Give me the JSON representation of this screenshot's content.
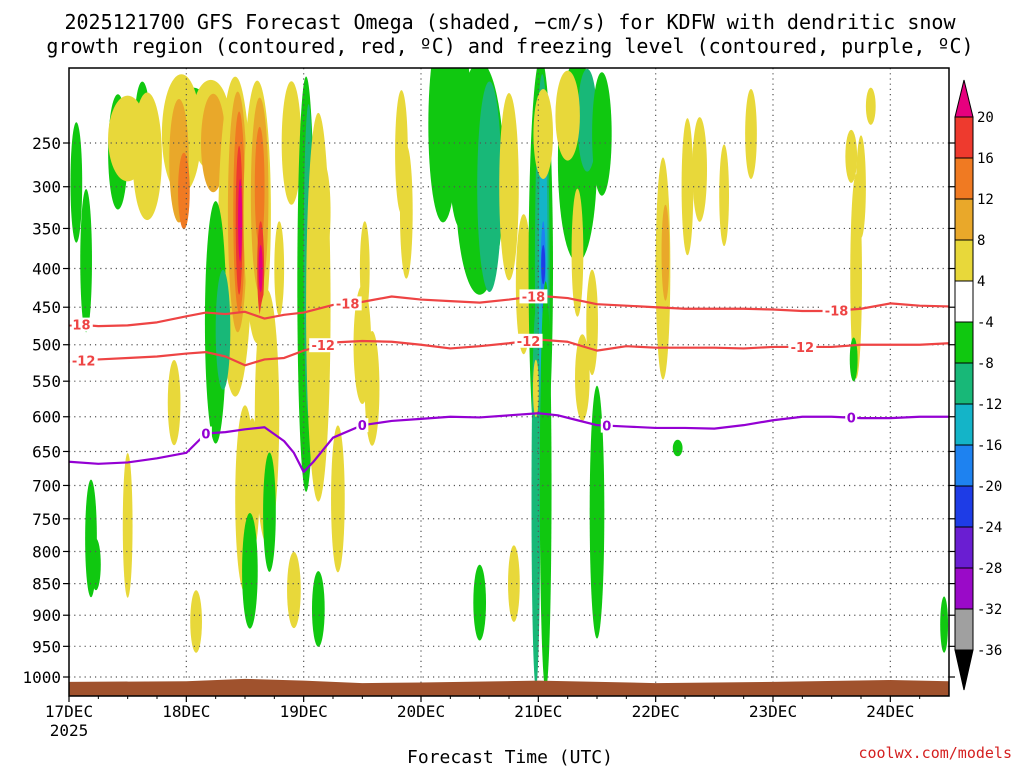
{
  "chart_data": {
    "type": "heatmap",
    "title_lines": [
      "2025121700 GFS Forecast Omega (shaded, −cm/s) for KDFW with dendritic snow",
      "growth region (contoured, red, ºC) and freezing level (contoured, purple, ºC)"
    ],
    "xlabel": "Forecast Time (UTC)",
    "credit": "coolwx.com/models",
    "x_unit": "hours since 2025-12-17 00Z",
    "xlim": [
      0,
      180
    ],
    "x_ticks": [
      {
        "hour": 0,
        "label": "17DEC",
        "sub": "2025"
      },
      {
        "hour": 24,
        "label": "18DEC"
      },
      {
        "hour": 48,
        "label": "19DEC"
      },
      {
        "hour": 72,
        "label": "20DEC"
      },
      {
        "hour": 96,
        "label": "21DEC"
      },
      {
        "hour": 120,
        "label": "22DEC"
      },
      {
        "hour": 144,
        "label": "23DEC"
      },
      {
        "hour": 168,
        "label": "24DEC"
      }
    ],
    "y_unit": "hPa",
    "ylim": [
      200,
      1025
    ],
    "y_ticks": [
      250,
      300,
      350,
      400,
      450,
      500,
      550,
      600,
      650,
      700,
      750,
      800,
      850,
      900,
      950,
      1000
    ],
    "colorbar": {
      "labels": [
        "20",
        "16",
        "12",
        "8",
        "4",
        "-4",
        "-8",
        "-12",
        "-16",
        "-20",
        "-24",
        "-28",
        "-32",
        "-36"
      ],
      "colors": {
        "gt20": "#e6007e",
        "16_20": "#ee3a2e",
        "12_16": "#f07a22",
        "8_12": "#e9a82a",
        "4_8": "#e8d83a",
        "m4_4": "#ffffff",
        "m8_m4": "#10c810",
        "m12_m8": "#18b878",
        "m16_m12": "#14b4c8",
        "m20_m16": "#1e82f0",
        "m24_m20": "#1e3ce6",
        "m28_m24": "#6a1ed2",
        "m32_m28": "#9a0ac8",
        "m36_m32": "#a0a0a0",
        "lt36": "#000000"
      }
    },
    "ground_color": "#a0522d",
    "series": [
      {
        "name": "-18 C isotherm",
        "color": "#ee4444",
        "label": "-18",
        "x": [
          0,
          6,
          12,
          18,
          24,
          28,
          32,
          36,
          40,
          44,
          48,
          54,
          60,
          66,
          72,
          78,
          84,
          90,
          96,
          102,
          108,
          114,
          120,
          126,
          132,
          138,
          144,
          150,
          156,
          162,
          168,
          174,
          180
        ],
        "y": [
          472,
          475,
          474,
          470,
          462,
          457,
          459,
          456,
          465,
          460,
          457,
          447,
          443,
          436,
          440,
          442,
          444,
          440,
          435,
          438,
          446,
          448,
          450,
          452,
          452,
          452,
          453,
          455,
          455,
          452,
          445,
          448,
          449
        ]
      },
      {
        "name": "-12 C isotherm",
        "color": "#ee4444",
        "label": "-12",
        "x": [
          0,
          6,
          12,
          18,
          24,
          28,
          32,
          36,
          40,
          44,
          48,
          54,
          60,
          66,
          72,
          78,
          84,
          90,
          96,
          102,
          108,
          114,
          120,
          126,
          132,
          138,
          144,
          150,
          156,
          162,
          168,
          174,
          180
        ],
        "y": [
          523,
          520,
          518,
          516,
          512,
          510,
          516,
          528,
          520,
          518,
          508,
          497,
          495,
          496,
          500,
          505,
          502,
          498,
          493,
          496,
          508,
          502,
          504,
          504,
          504,
          505,
          503,
          503,
          503,
          500,
          500,
          500,
          498
        ]
      },
      {
        "name": "0 C freezing level",
        "color": "#9400d3",
        "label": "0",
        "x": [
          0,
          6,
          12,
          18,
          24,
          28,
          32,
          36,
          40,
          44,
          46,
          48,
          50,
          54,
          60,
          66,
          72,
          78,
          84,
          90,
          96,
          100,
          104,
          108,
          114,
          120,
          126,
          132,
          138,
          144,
          150,
          156,
          162,
          168,
          174,
          180
        ],
        "y": [
          665,
          668,
          666,
          660,
          652,
          624,
          622,
          618,
          615,
          635,
          652,
          680,
          665,
          630,
          612,
          606,
          603,
          600,
          601,
          598,
          595,
          598,
          605,
          612,
          614,
          616,
          616,
          617,
          612,
          605,
          600,
          600,
          602,
          602,
          600,
          600
        ]
      }
    ]
  }
}
